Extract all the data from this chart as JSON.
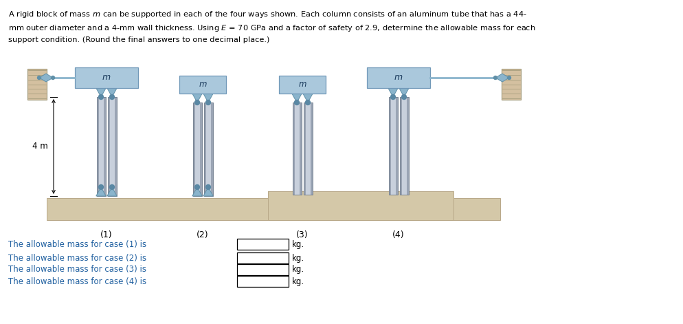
{
  "bg_color": "#ffffff",
  "column_color": "#9aa4b4",
  "column_highlight": "#c8d0dc",
  "block_color": "#aac8dc",
  "block_edge": "#7098b8",
  "ground_color": "#d4c8a8",
  "ground_edge": "#b8a888",
  "wall_color": "#d4c0a0",
  "wall_edge": "#b8a888",
  "pin_color": "#8ab4cc",
  "pin_edge": "#6090a8",
  "rod_color": "#8ab4cc",
  "text_color": "#2060a0",
  "answer_lines": [
    "The allowable mass for case (1) is",
    "The allowable mass for case (2) is",
    "The allowable mass for case (3) is",
    "The allowable mass for case (4) is"
  ],
  "case_labels": [
    "(1)",
    "(2)",
    "(3)",
    "(4)"
  ],
  "dim_label": "4 m",
  "title_line1": "A rigid block of mass m can be supported in each of the four ways shown. Each column consists of an aluminum tube that has a 44-",
  "title_line2": "mm outer diameter and a 4-mm wall thickness. Using E = 70 GPa and a factor of safety of 2.9, determine the allowable mass for each",
  "title_line3": "support condition. (Round the final answers to one decimal place.)"
}
